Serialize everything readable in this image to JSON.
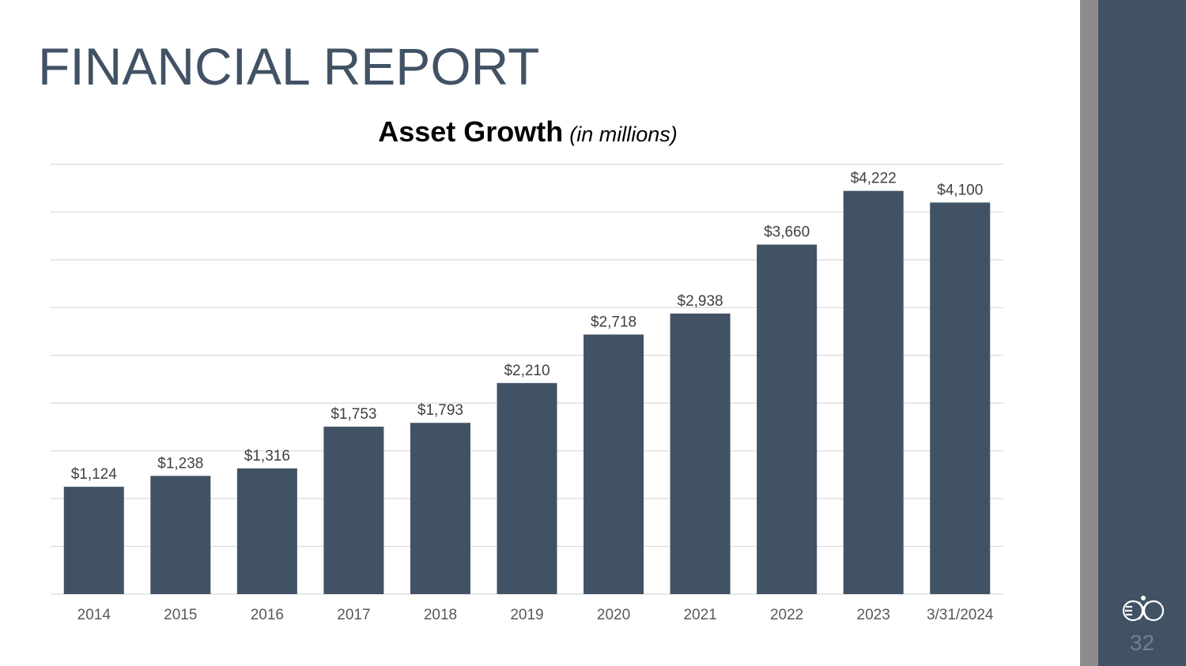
{
  "slide": {
    "title": "FINANCIAL REPORT",
    "page_number": "32",
    "logo_icon": "bank-logo-icon",
    "colors": {
      "bar": "#415264",
      "title": "#415264",
      "sidebar": "#415264",
      "band": "#8c8c8c",
      "grid": "#d9d9d9"
    }
  },
  "chart_data": {
    "type": "bar",
    "title": "Asset Growth",
    "subtitle": "(in millions)",
    "xlabel": "",
    "ylabel": "",
    "categories": [
      "2014",
      "2015",
      "2016",
      "2017",
      "2018",
      "2019",
      "2020",
      "2021",
      "2022",
      "2023",
      "3/31/2024"
    ],
    "values": [
      1124,
      1238,
      1316,
      1753,
      1793,
      2210,
      2718,
      2938,
      3660,
      4222,
      4100
    ],
    "data_labels": [
      "$1,124",
      "$1,238",
      "$1,316",
      "$1,753",
      "$1,793",
      "$2,210",
      "$2,718",
      "$2,938",
      "$3,660",
      "$4,222",
      "$4,100"
    ],
    "ylim": [
      0,
      4500
    ],
    "gridline_step": 500,
    "grid": true,
    "legend": "none"
  }
}
